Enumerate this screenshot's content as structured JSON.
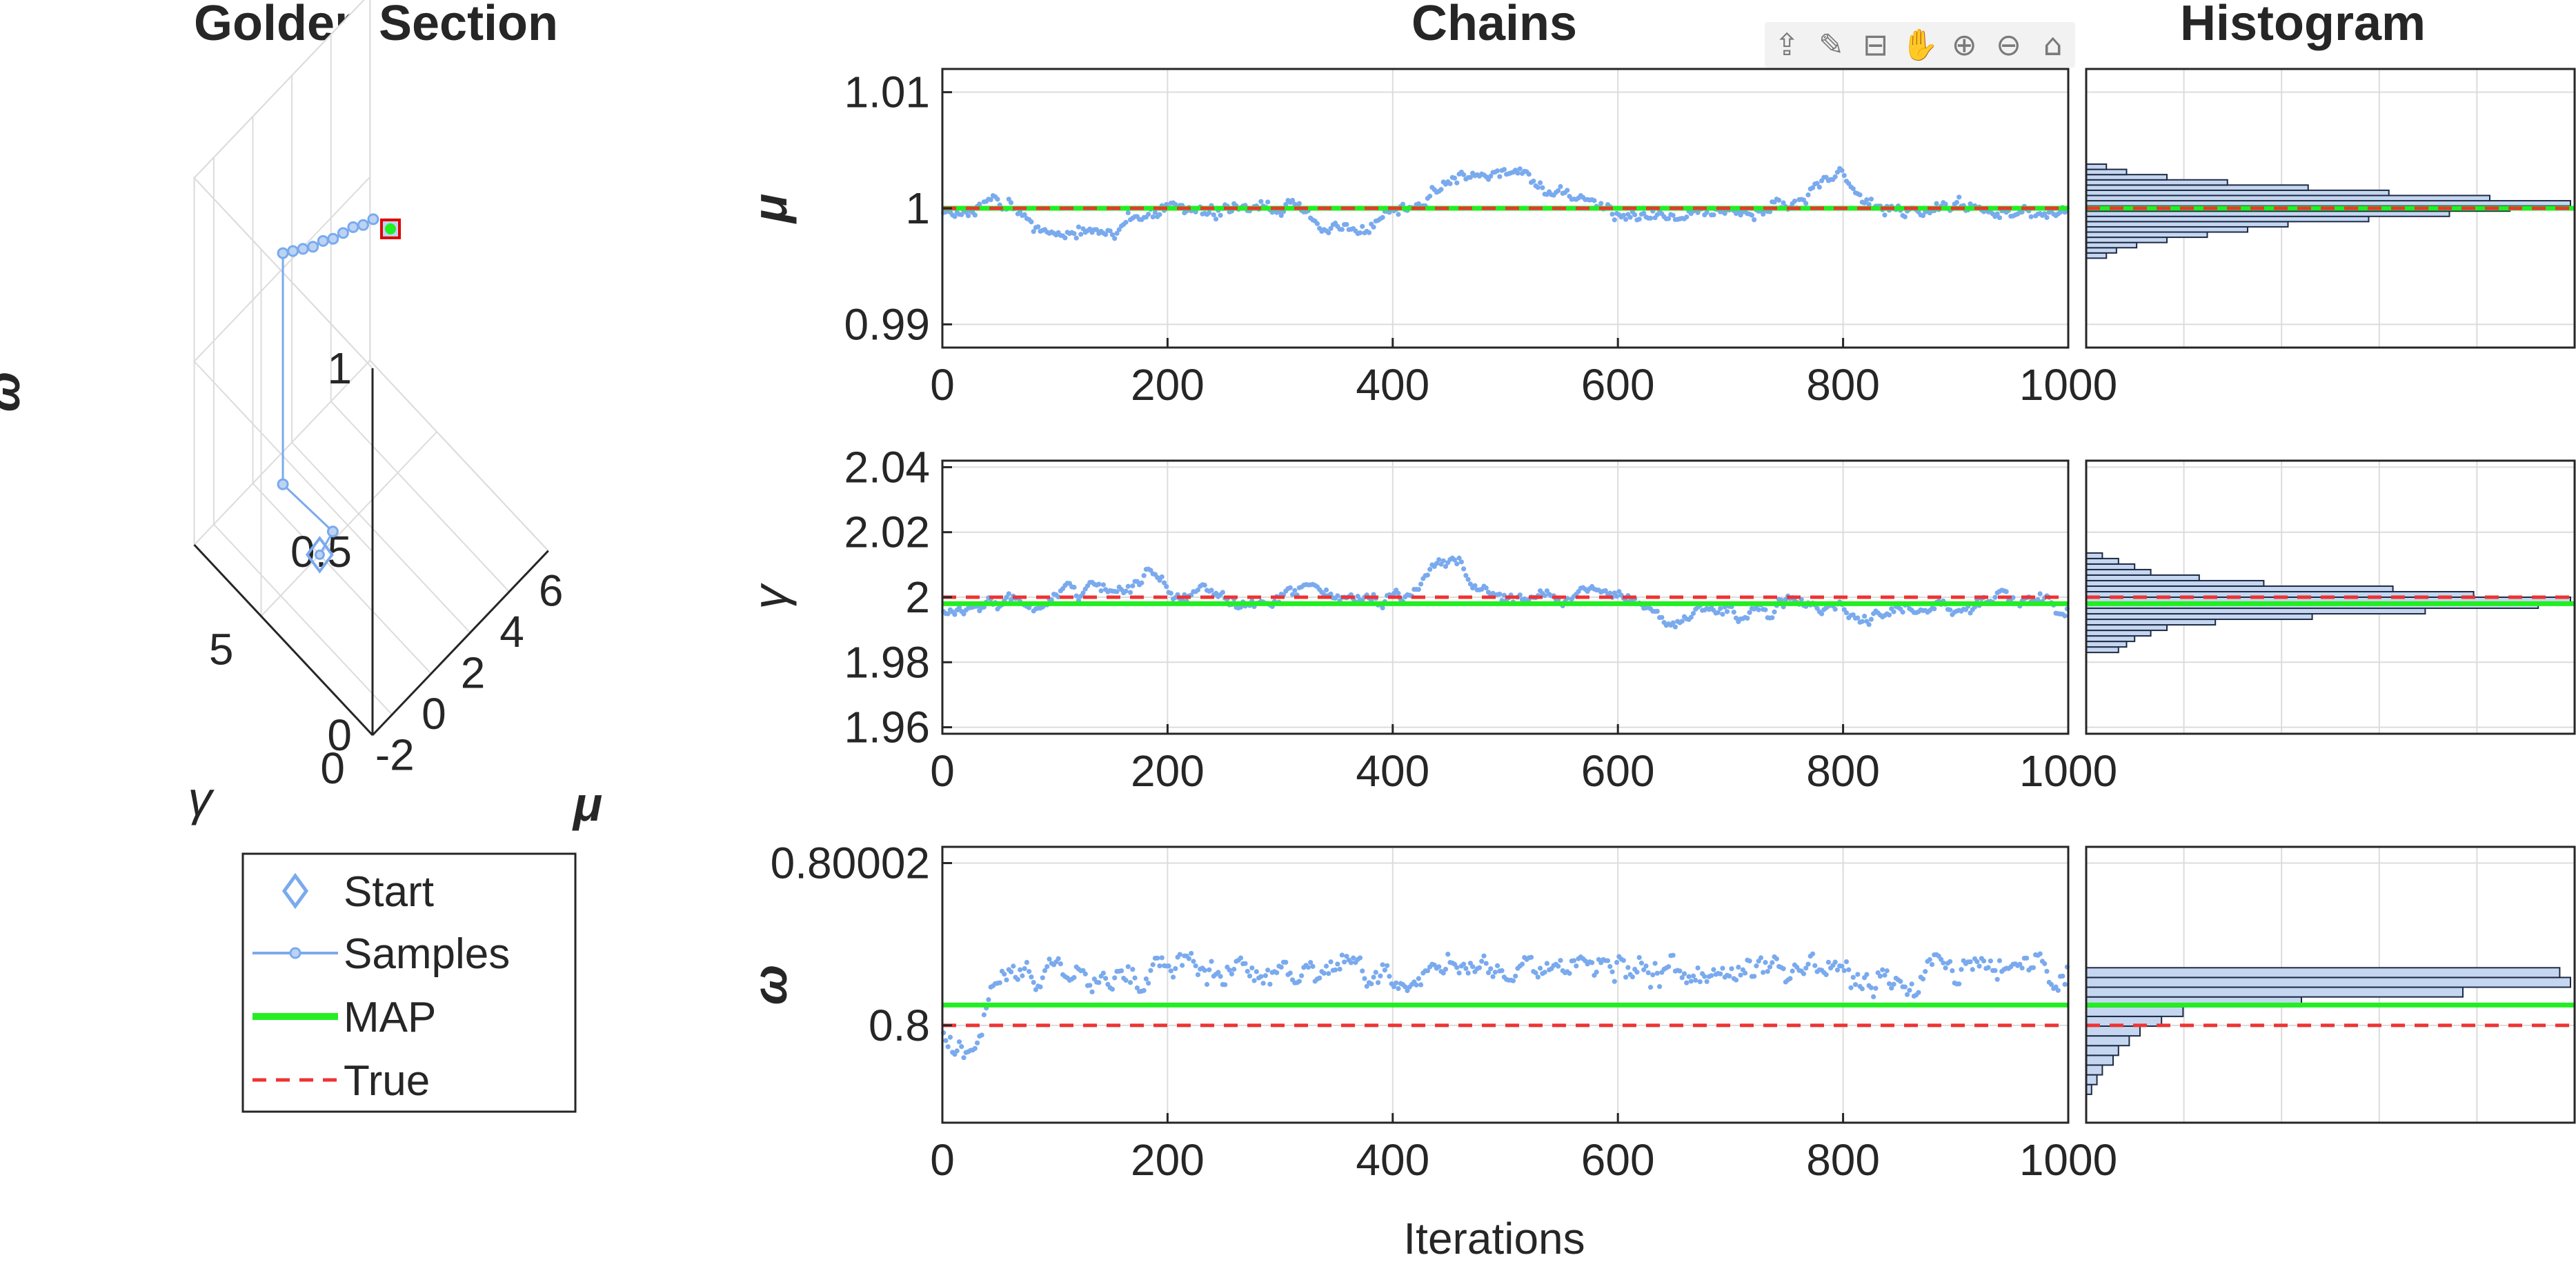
{
  "panels": {
    "left_title": "Golden Section",
    "chains_title": "Chains",
    "hist_title": "Histogram",
    "xlabel": "Iterations"
  },
  "toolbar": {
    "icons": [
      "export-icon",
      "brush-icon",
      "datatip-icon",
      "pan-icon",
      "zoom-in-icon",
      "zoom-out-icon",
      "home-icon"
    ]
  },
  "legend": {
    "start": "Start",
    "samples": "Samples",
    "map": "MAP",
    "true": "True"
  },
  "colors": {
    "samples": "#7aaaee",
    "map": "#22ee22",
    "true": "#ee3333",
    "hist_fill": "#c5d7f0",
    "hist_edge": "#1f2a44",
    "axis": "#262626",
    "grid": "#dcdcdc",
    "marker_edge": "#dd0000"
  },
  "chart_data": [
    {
      "type": "line",
      "view": "3d",
      "title": "Golden Section",
      "xlabel": "μ",
      "ylabel": "γ",
      "zlabel": "ω",
      "xlim": [
        -3,
        6
      ],
      "ylim": [
        0,
        8
      ],
      "zlim": [
        0,
        1
      ],
      "xticks": [
        "-2",
        "0",
        "2",
        "4",
        "6"
      ],
      "yticks": [
        "0",
        "5"
      ],
      "zticks": [
        "0",
        "0.5",
        "1"
      ],
      "start": {
        "mu": 0.0,
        "gamma": 5.0,
        "omega": 0.0
      },
      "samples": [
        {
          "mu": 0.9,
          "gamma": 5.2,
          "omega": 0.0
        },
        {
          "mu": -1.2,
          "gamma": 5.6,
          "omega": 0.22
        },
        {
          "mu": -1.2,
          "gamma": 5.6,
          "omega": 0.85
        },
        {
          "mu": -0.8,
          "gamma": 5.5,
          "omega": 0.84
        },
        {
          "mu": -0.4,
          "gamma": 5.4,
          "omega": 0.83
        },
        {
          "mu": 0.0,
          "gamma": 5.3,
          "omega": 0.82
        },
        {
          "mu": 0.4,
          "gamma": 5.2,
          "omega": 0.82
        },
        {
          "mu": 0.8,
          "gamma": 5.1,
          "omega": 0.81
        },
        {
          "mu": 1.2,
          "gamma": 5.0,
          "omega": 0.81
        },
        {
          "mu": 1.6,
          "gamma": 4.9,
          "omega": 0.81
        },
        {
          "mu": 2.0,
          "gamma": 4.8,
          "omega": 0.8
        },
        {
          "mu": 2.4,
          "gamma": 4.7,
          "omega": 0.8
        }
      ],
      "map": {
        "mu": 1.0,
        "gamma": 2.0,
        "omega": 0.8
      }
    },
    {
      "type": "scatter",
      "parameter": "μ",
      "ylabel": "μ",
      "xlabel": "",
      "xlim": [
        0,
        1000
      ],
      "ylim": [
        0.988,
        1.012
      ],
      "xticks": [
        "0",
        "200",
        "400",
        "600",
        "800",
        "1000"
      ],
      "yticks": [
        "0.99",
        "1",
        "1.01"
      ],
      "map": 1.0,
      "true": 1.0,
      "walk": {
        "seed": 11,
        "start": 1.0,
        "step": 0.00025,
        "revert": 0.06,
        "min": 0.9965,
        "max": 1.0045,
        "noise": 0.0006,
        "low_seg": [
          [
            60,
            160
          ],
          [
            320,
            380
          ]
        ],
        "high_seg": [
          [
            430,
            520
          ],
          [
            760,
            800
          ]
        ]
      },
      "hist": {
        "bin_edges_start": 0.9957,
        "bin_width": 0.00045,
        "counts": [
          2,
          3,
          5,
          8,
          12,
          16,
          20,
          28,
          36,
          42,
          48,
          40,
          30,
          22,
          14,
          8,
          4,
          2
        ]
      }
    },
    {
      "type": "scatter",
      "parameter": "γ",
      "ylabel": "γ",
      "xlabel": "",
      "xlim": [
        0,
        1000
      ],
      "ylim": [
        1.958,
        2.042
      ],
      "xticks": [
        "0",
        "200",
        "400",
        "600",
        "800",
        "1000"
      ],
      "yticks": [
        "1.96",
        "1.98",
        "2",
        "2.02",
        "2.04"
      ],
      "map": 1.998,
      "true": 2.0,
      "walk": {
        "seed": 23,
        "start": 1.998,
        "step": 0.0012,
        "revert": 0.03,
        "min": 1.984,
        "max": 2.015,
        "noise": 0.0008,
        "low_seg": [
          [
            590,
            640
          ]
        ],
        "high_seg": [
          [
            150,
            185
          ],
          [
            400,
            460
          ]
        ]
      },
      "hist": {
        "bin_edges_start": 1.983,
        "bin_width": 0.0017,
        "counts": [
          4,
          5,
          6,
          8,
          10,
          16,
          28,
          42,
          56,
          60,
          48,
          38,
          22,
          14,
          8,
          6,
          4,
          2
        ]
      }
    },
    {
      "type": "scatter",
      "parameter": "ω",
      "ylabel": "ω",
      "xlabel": "Iterations",
      "xlim": [
        0,
        1000
      ],
      "ylim": [
        0.799988,
        0.800022
      ],
      "xticks": [
        "0",
        "200",
        "400",
        "600",
        "800",
        "1000"
      ],
      "yticks": [
        "0.8",
        "0.80002"
      ],
      "map": 0.8000025,
      "true": 0.8,
      "walk": {
        "seed": 5,
        "start": 0.8,
        "step": 1e-06,
        "revert": 0.08,
        "min": 0.7999925,
        "max": 0.8000085,
        "noise": 8e-07,
        "low_seg": [
          [
            0,
            30
          ],
          [
            320,
            350
          ],
          [
            860,
            870
          ]
        ],
        "high_seg": [
          [
            30,
            1000
          ]
        ]
      },
      "hist": {
        "bin_edges_start": 0.7999915,
        "bin_width": 1.2e-06,
        "counts": [
          1,
          2,
          3,
          5,
          6,
          8,
          10,
          14,
          18,
          40,
          70,
          90,
          88
        ]
      }
    }
  ]
}
